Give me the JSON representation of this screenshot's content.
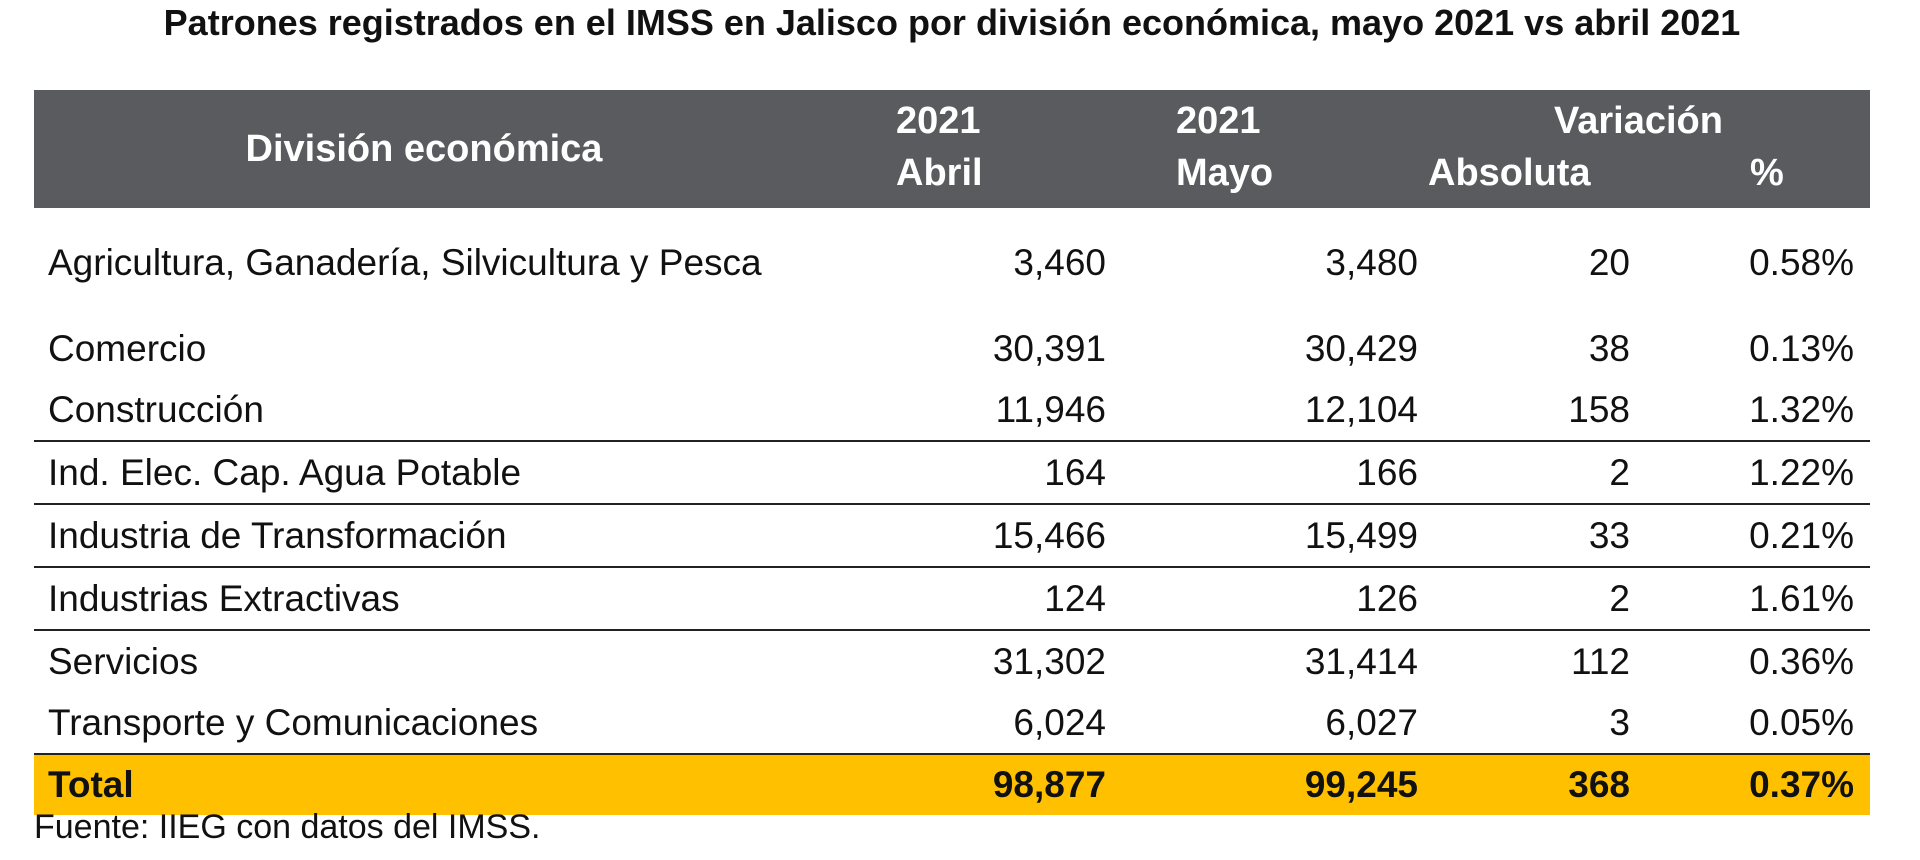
{
  "title": "Patrones registrados en el IMSS en Jalisco por división económica, mayo 2021 vs abril 2021",
  "header": {
    "division": "División económica",
    "abril_year": "2021",
    "abril_label": "Abril",
    "mayo_year": "2021",
    "mayo_label": "Mayo",
    "variacion": "Variación",
    "absoluta": "Absoluta",
    "porcentaje": "%"
  },
  "rows": [
    {
      "division": "Agricultura, Ganadería, Silvicultura y Pesca",
      "abril": "3,460",
      "mayo": "3,480",
      "absoluta": "20",
      "porcentaje": "0.58%"
    },
    {
      "division": "Comercio",
      "abril": "30,391",
      "mayo": "30,429",
      "absoluta": "38",
      "porcentaje": "0.13%"
    },
    {
      "division": "Construcción",
      "abril": "11,946",
      "mayo": "12,104",
      "absoluta": "158",
      "porcentaje": "1.32%"
    },
    {
      "division": "Ind. Elec. Cap. Agua Potable",
      "abril": "164",
      "mayo": "166",
      "absoluta": "2",
      "porcentaje": "1.22%"
    },
    {
      "division": "Industria de Transformación",
      "abril": "15,466",
      "mayo": "15,499",
      "absoluta": "33",
      "porcentaje": "0.21%"
    },
    {
      "division": "Industrias Extractivas",
      "abril": "124",
      "mayo": "126",
      "absoluta": "2",
      "porcentaje": "1.61%"
    },
    {
      "division": "Servicios",
      "abril": "31,302",
      "mayo": "31,414",
      "absoluta": "112",
      "porcentaje": "0.36%"
    },
    {
      "division": "Transporte y Comunicaciones",
      "abril": "6,024",
      "mayo": "6,027",
      "absoluta": "3",
      "porcentaje": "0.05%"
    }
  ],
  "total": {
    "division": "Total",
    "abril": "98,877",
    "mayo": "99,245",
    "absoluta": "368",
    "porcentaje": "0.37%"
  },
  "source": "Fuente: IIEG con datos del IMSS.",
  "colors": {
    "header_bg": "#595b5e",
    "total_bg": "#ffc000"
  }
}
